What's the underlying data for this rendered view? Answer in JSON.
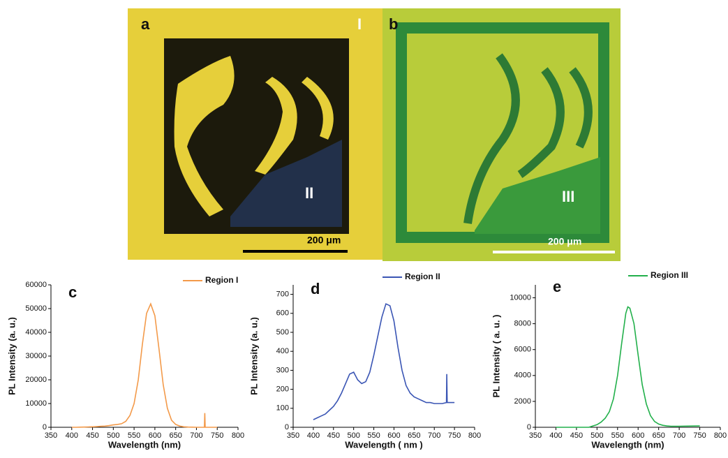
{
  "images": [
    {
      "label": "a",
      "region_labels": [
        "I",
        "II"
      ],
      "scale_bar": "200 μm"
    },
    {
      "label": "b",
      "region_labels": [
        "III"
      ],
      "scale_bar": "200 μm"
    }
  ],
  "chart_data": [
    {
      "type": "line",
      "panel_label": "c",
      "x_label": "Wavelength (nm)",
      "y_label": "PL Intensity (a. u.)",
      "x": [
        400,
        410,
        420,
        430,
        440,
        450,
        460,
        470,
        480,
        490,
        500,
        510,
        520,
        530,
        540,
        550,
        560,
        570,
        580,
        590,
        600,
        610,
        620,
        630,
        640,
        650,
        660,
        670,
        680,
        690,
        700,
        710,
        719,
        720,
        721,
        730,
        740,
        750
      ],
      "series": [
        {
          "name": "Region I",
          "color": "#f39a4a",
          "values": [
            0,
            0,
            50,
            100,
            150,
            200,
            300,
            400,
            500,
            700,
            1000,
            1200,
            1500,
            2500,
            5000,
            10000,
            20000,
            35000,
            48000,
            52000,
            47000,
            33000,
            18000,
            8000,
            3000,
            1200,
            500,
            200,
            100,
            50,
            0,
            0,
            0,
            6000,
            0,
            0,
            0,
            0
          ]
        }
      ],
      "xlim": [
        350,
        800
      ],
      "ylim": [
        0,
        60000
      ],
      "xticks": [
        350,
        400,
        450,
        500,
        550,
        600,
        650,
        700,
        750,
        800
      ],
      "yticks": [
        0,
        10000,
        20000,
        30000,
        40000,
        50000,
        60000
      ]
    },
    {
      "type": "line",
      "panel_label": "d",
      "x_label": "Wavelength ( nm )",
      "y_label": "PL Intensity (a. u.)",
      "x": [
        400,
        410,
        420,
        430,
        440,
        450,
        460,
        470,
        480,
        490,
        500,
        510,
        520,
        530,
        540,
        550,
        560,
        570,
        580,
        590,
        600,
        610,
        620,
        630,
        640,
        650,
        660,
        670,
        680,
        690,
        700,
        710,
        720,
        730,
        731,
        732,
        740,
        750
      ],
      "series": [
        {
          "name": "Region II",
          "color": "#3a55b4",
          "values": [
            40,
            50,
            60,
            70,
            90,
            110,
            140,
            180,
            230,
            280,
            290,
            250,
            230,
            240,
            290,
            380,
            480,
            580,
            650,
            640,
            560,
            420,
            300,
            220,
            180,
            160,
            150,
            140,
            130,
            130,
            125,
            125,
            125,
            130,
            280,
            130,
            130,
            130
          ]
        }
      ],
      "xlim": [
        350,
        800
      ],
      "ylim": [
        0,
        750
      ],
      "xticks": [
        350,
        400,
        450,
        500,
        550,
        600,
        650,
        700,
        750,
        800
      ],
      "yticks": [
        0,
        100,
        200,
        300,
        400,
        500,
        600,
        700
      ]
    },
    {
      "type": "line",
      "panel_label": "e",
      "x_label": "Wavelength (nm)",
      "y_label": "PL Intensity ( a. u. )",
      "x": [
        400,
        420,
        440,
        460,
        480,
        490,
        500,
        510,
        520,
        530,
        540,
        550,
        560,
        570,
        575,
        580,
        590,
        600,
        610,
        620,
        630,
        640,
        650,
        660,
        670,
        680,
        700,
        720,
        750
      ],
      "series": [
        {
          "name": "Region III",
          "color": "#22b04b",
          "values": [
            0,
            0,
            0,
            0,
            0,
            100,
            200,
            400,
            700,
            1200,
            2200,
            4000,
            6500,
            8800,
            9300,
            9200,
            8000,
            5600,
            3300,
            1800,
            900,
            450,
            250,
            150,
            100,
            80,
            80,
            90,
            100
          ]
        }
      ],
      "xlim": [
        350,
        800
      ],
      "ylim": [
        0,
        11000
      ],
      "xticks": [
        350,
        400,
        450,
        500,
        550,
        600,
        650,
        700,
        750,
        800
      ],
      "yticks": [
        0,
        2000,
        4000,
        6000,
        8000,
        10000
      ]
    }
  ]
}
